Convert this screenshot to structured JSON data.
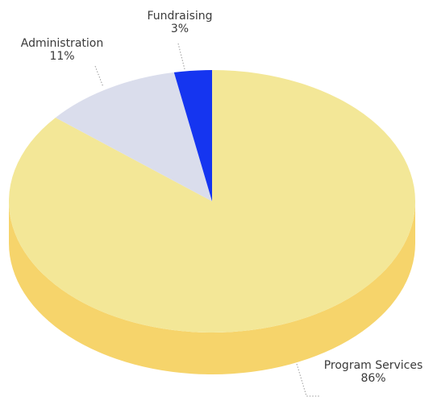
{
  "chart_data": {
    "type": "pie",
    "style": "3d",
    "title": "",
    "categories": [
      "Program Services",
      "Administration",
      "Fundraising"
    ],
    "values": [
      86,
      11,
      3
    ],
    "value_labels": [
      "86%",
      "11%",
      "3%"
    ],
    "colors": [
      "#F3E797",
      "#DADDEC",
      "#1535F0"
    ],
    "side_colors": [
      "#F6D46B",
      "#C9CCD8",
      "#1026B8"
    ],
    "legend": "none"
  }
}
